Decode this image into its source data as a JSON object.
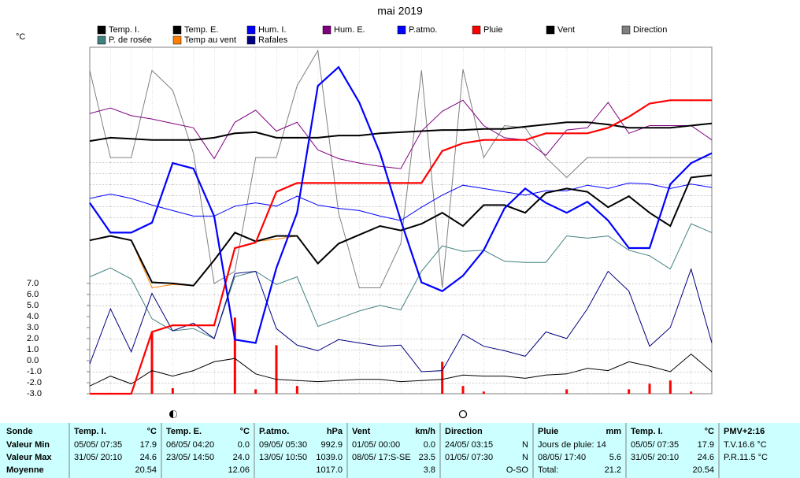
{
  "chart_data": {
    "type": "line",
    "title": "mai 2019",
    "ylabel": "°C",
    "categories": [
      null,
      null,
      null,
      null,
      null,
      null,
      null,
      null,
      null,
      null,
      null,
      null,
      null,
      null,
      null,
      null,
      null,
      null,
      null,
      null,
      null,
      null,
      null,
      null,
      null,
      null,
      null,
      null,
      null,
      null,
      null
    ],
    "ylim": [
      -3,
      28.4
    ],
    "yticks": [
      {
        "value": -3,
        "label": "-3.0"
      },
      {
        "value": -2,
        "label": "-2.0"
      },
      {
        "value": -1,
        "label": "-1.0"
      },
      {
        "value": 0,
        "label": "0.0"
      },
      {
        "value": 1,
        "label": "1.0"
      },
      {
        "value": 2,
        "label": "2.0"
      },
      {
        "value": 3,
        "label": "3.0"
      },
      {
        "value": 4,
        "label": "4.0"
      },
      {
        "value": 5,
        "label": "5.0"
      },
      {
        "value": 6,
        "label": "6.0"
      },
      {
        "value": 7,
        "label": "7.0"
      }
    ],
    "grid": true,
    "series": [
      {
        "name": "Temp. I.",
        "color": "#000000",
        "values": [
          10.9,
          11.3,
          10.9,
          7.1,
          7.0,
          6.8,
          9.1,
          11.6,
          10.8,
          11.3,
          11.3,
          8.8,
          10.6,
          11.4,
          12.2,
          11.8,
          12.4,
          13.4,
          12.2,
          14.1,
          14.1,
          13.4,
          15.2,
          15.6,
          15.3,
          13.9,
          14.9,
          13.4,
          12.2,
          16.6,
          16.8
        ]
      },
      {
        "name": "Temp. E.",
        "color": "#000000",
        "values": [
          -2.3,
          -1.4,
          -2.1,
          -0.9,
          -1.4,
          -0.9,
          -0.1,
          0.2,
          -1.2,
          -1.7,
          -1.8,
          -1.9,
          -1.8,
          -1.7,
          -1.7,
          -1.9,
          -1.8,
          -1.7,
          -1.3,
          -1.4,
          -1.4,
          -1.6,
          -1.3,
          -1.2,
          -0.7,
          -0.9,
          -0.1,
          -0.5,
          -1.0,
          0.6,
          -1.0
        ]
      },
      {
        "name": "Hum. I.",
        "color": "#0000ff",
        "values": [
          14.7,
          15.1,
          14.7,
          14.1,
          13.6,
          13.1,
          13.1,
          14.0,
          14.3,
          14.0,
          14.9,
          14.1,
          13.8,
          13.6,
          13.1,
          12.7,
          13.9,
          15.0,
          15.9,
          15.6,
          15.3,
          15.0,
          15.4,
          15.4,
          15.9,
          15.6,
          16.1,
          16.0,
          15.6,
          16.0,
          15.7
        ]
      },
      {
        "name": "Hum. E.",
        "color": "#800080",
        "values": [
          22.4,
          22.9,
          22.2,
          21.9,
          21.5,
          21.1,
          18.3,
          21.6,
          22.7,
          20.8,
          21.6,
          19.1,
          18.3,
          17.9,
          17.6,
          17.4,
          20.8,
          22.6,
          23.6,
          21.3,
          20.2,
          20.0,
          18.6,
          20.9,
          21.1,
          23.4,
          20.6,
          21.3,
          21.3,
          21.3,
          20.0
        ]
      },
      {
        "name": "P.atmo.",
        "color": "#0000ff",
        "values": [
          14.3,
          11.6,
          11.6,
          12.5,
          17.9,
          17.4,
          13.1,
          1.9,
          1.6,
          8.4,
          13.4,
          24.9,
          26.6,
          23.4,
          18.8,
          12.7,
          7.1,
          6.3,
          7.7,
          10.0,
          13.8,
          15.6,
          14.3,
          13.4,
          14.4,
          12.7,
          10.2,
          10.2,
          16.0,
          17.9,
          18.8
        ]
      },
      {
        "name": "Pluie",
        "color": "#ff0000",
        "values": [
          -3.0,
          -3.0,
          -3.0,
          2.6,
          3.2,
          3.2,
          3.2,
          10.2,
          10.7,
          15.3,
          16.1,
          16.1,
          16.1,
          16.1,
          16.1,
          16.1,
          16.1,
          19.0,
          19.7,
          20.0,
          20.0,
          20.0,
          20.6,
          20.6,
          20.6,
          21.1,
          22.1,
          23.3,
          23.6,
          23.6,
          23.6
        ]
      },
      {
        "name": "Vent",
        "color": "#000000",
        "values": [
          19.9,
          20.2,
          20.1,
          20.0,
          20.0,
          20.0,
          20.2,
          20.6,
          20.7,
          20.2,
          20.2,
          20.2,
          20.4,
          20.4,
          20.6,
          20.7,
          20.8,
          20.9,
          20.9,
          21.0,
          21.0,
          21.2,
          21.4,
          21.6,
          21.6,
          21.4,
          21.1,
          21.1,
          21.1,
          21.3,
          21.5
        ]
      },
      {
        "name": "Direction",
        "color": "#808080",
        "values": [
          26.3,
          18.4,
          18.4,
          26.3,
          24.5,
          18.8,
          7.0,
          8.1,
          18.4,
          18.4,
          24.9,
          28.1,
          13.4,
          6.6,
          6.6,
          10.6,
          26.3,
          6.6,
          26.4,
          18.4,
          21.3,
          21.1,
          18.4,
          16.6,
          18.4,
          18.4,
          18.4,
          18.4,
          18.4,
          18.4,
          18.4
        ]
      },
      {
        "name": "P. de rosée",
        "color": "#408080",
        "values": [
          7.6,
          8.4,
          7.4,
          3.8,
          2.7,
          2.9,
          2.0,
          7.6,
          8.1,
          6.9,
          7.6,
          3.1,
          3.8,
          4.5,
          5.0,
          4.6,
          8.1,
          10.4,
          9.9,
          10.0,
          9.0,
          8.9,
          8.9,
          11.3,
          11.1,
          11.3,
          10.0,
          9.5,
          8.3,
          12.4,
          11.6
        ]
      },
      {
        "name": "Temp au vent",
        "color": "#ff8000",
        "values": [
          10.9,
          11.3,
          10.9,
          6.6,
          6.9,
          6.8,
          9.1,
          11.6,
          10.8,
          11.0,
          11.3,
          8.8,
          10.6,
          11.4,
          12.2,
          11.8,
          12.4,
          13.4,
          12.2,
          14.1,
          14.1,
          13.4,
          15.2,
          15.6,
          15.3,
          13.9,
          14.9,
          13.4,
          12.2,
          16.6,
          16.8
        ]
      },
      {
        "name": "Rafales",
        "color": "#000080",
        "values": [
          -0.3,
          4.7,
          0.8,
          6.1,
          2.7,
          3.4,
          2.0,
          7.9,
          8.1,
          2.9,
          1.4,
          0.9,
          1.9,
          1.6,
          1.3,
          1.4,
          -1.0,
          -0.9,
          2.4,
          1.3,
          0.9,
          0.4,
          2.6,
          2.0,
          4.7,
          8.1,
          6.3,
          1.3,
          3.0,
          8.3,
          1.6
        ]
      }
    ],
    "bars": {
      "color": "#ff0000",
      "values": [
        null,
        null,
        null,
        2.6,
        -2.5,
        null,
        null,
        3.9,
        -2.6,
        1.4,
        -2.3,
        null,
        null,
        null,
        null,
        null,
        null,
        -0.1,
        -2.3,
        -2.8,
        null,
        null,
        null,
        -2.6,
        null,
        null,
        -2.6,
        -2.1,
        -1.8,
        -2.8,
        null
      ]
    }
  },
  "table": {
    "row_labels": [
      "Sonde",
      "Valeur Min",
      "Valeur Max",
      "Moyenne"
    ],
    "panels": [
      {
        "label": "Temp. I.",
        "unit": "°C",
        "rows": [
          {
            "left": "05/05/ 07:35",
            "right": "17.9"
          },
          {
            "left": "31/05/ 20:10",
            "right": "24.6"
          },
          {
            "right": "20.54"
          }
        ]
      },
      {
        "label": "Temp. E.",
        "unit": "°C",
        "rows": [
          {
            "left": "06/05/ 04:20",
            "right": "0.0"
          },
          {
            "left": "23/05/ 14:50",
            "right": "24.0"
          },
          {
            "right": "12.06"
          }
        ]
      },
      {
        "label": "P.atmo.",
        "unit": "hPa",
        "rows": [
          {
            "left": "09/05/ 05:30",
            "right": "992.9"
          },
          {
            "left": "13/05/ 10:50",
            "right": "1039.0"
          },
          {
            "right": "1017.0"
          }
        ]
      },
      {
        "label": "Vent",
        "unit": "km/h",
        "rows": [
          {
            "left": "01/05/ 00:00",
            "right": "0.0"
          },
          {
            "left": "08/05/ 17:S-SE",
            "right": "23.5"
          },
          {
            "right": "3.8"
          }
        ]
      },
      {
        "label": "Direction",
        "rows": [
          {
            "left": "24/05/ 03:15",
            "right": "N"
          },
          {
            "left": "01/05/ 07:30",
            "right": "N"
          },
          {
            "right": "O-SO"
          }
        ]
      },
      {
        "label": "Pluie",
        "unit": "mm",
        "rows": [
          {
            "left": "Jours de pluie: 14"
          },
          {
            "left": "08/05/ 17:40",
            "right": "5.6"
          },
          {
            "left": "Total:",
            "right": "21.2"
          }
        ]
      },
      {
        "label": "Temp. I.",
        "unit": "°C",
        "rows": [
          {
            "left": "05/05/ 07:35",
            "right": "17.9"
          },
          {
            "left": "31/05/ 20:10",
            "right": "24.6"
          },
          {
            "right": "20.54"
          }
        ]
      },
      {
        "label": "PMV+2:16",
        "rows": [
          {
            "left": "T.V.16.6 °C"
          },
          {
            "left": "P.R.11.5 °C"
          }
        ]
      }
    ]
  }
}
